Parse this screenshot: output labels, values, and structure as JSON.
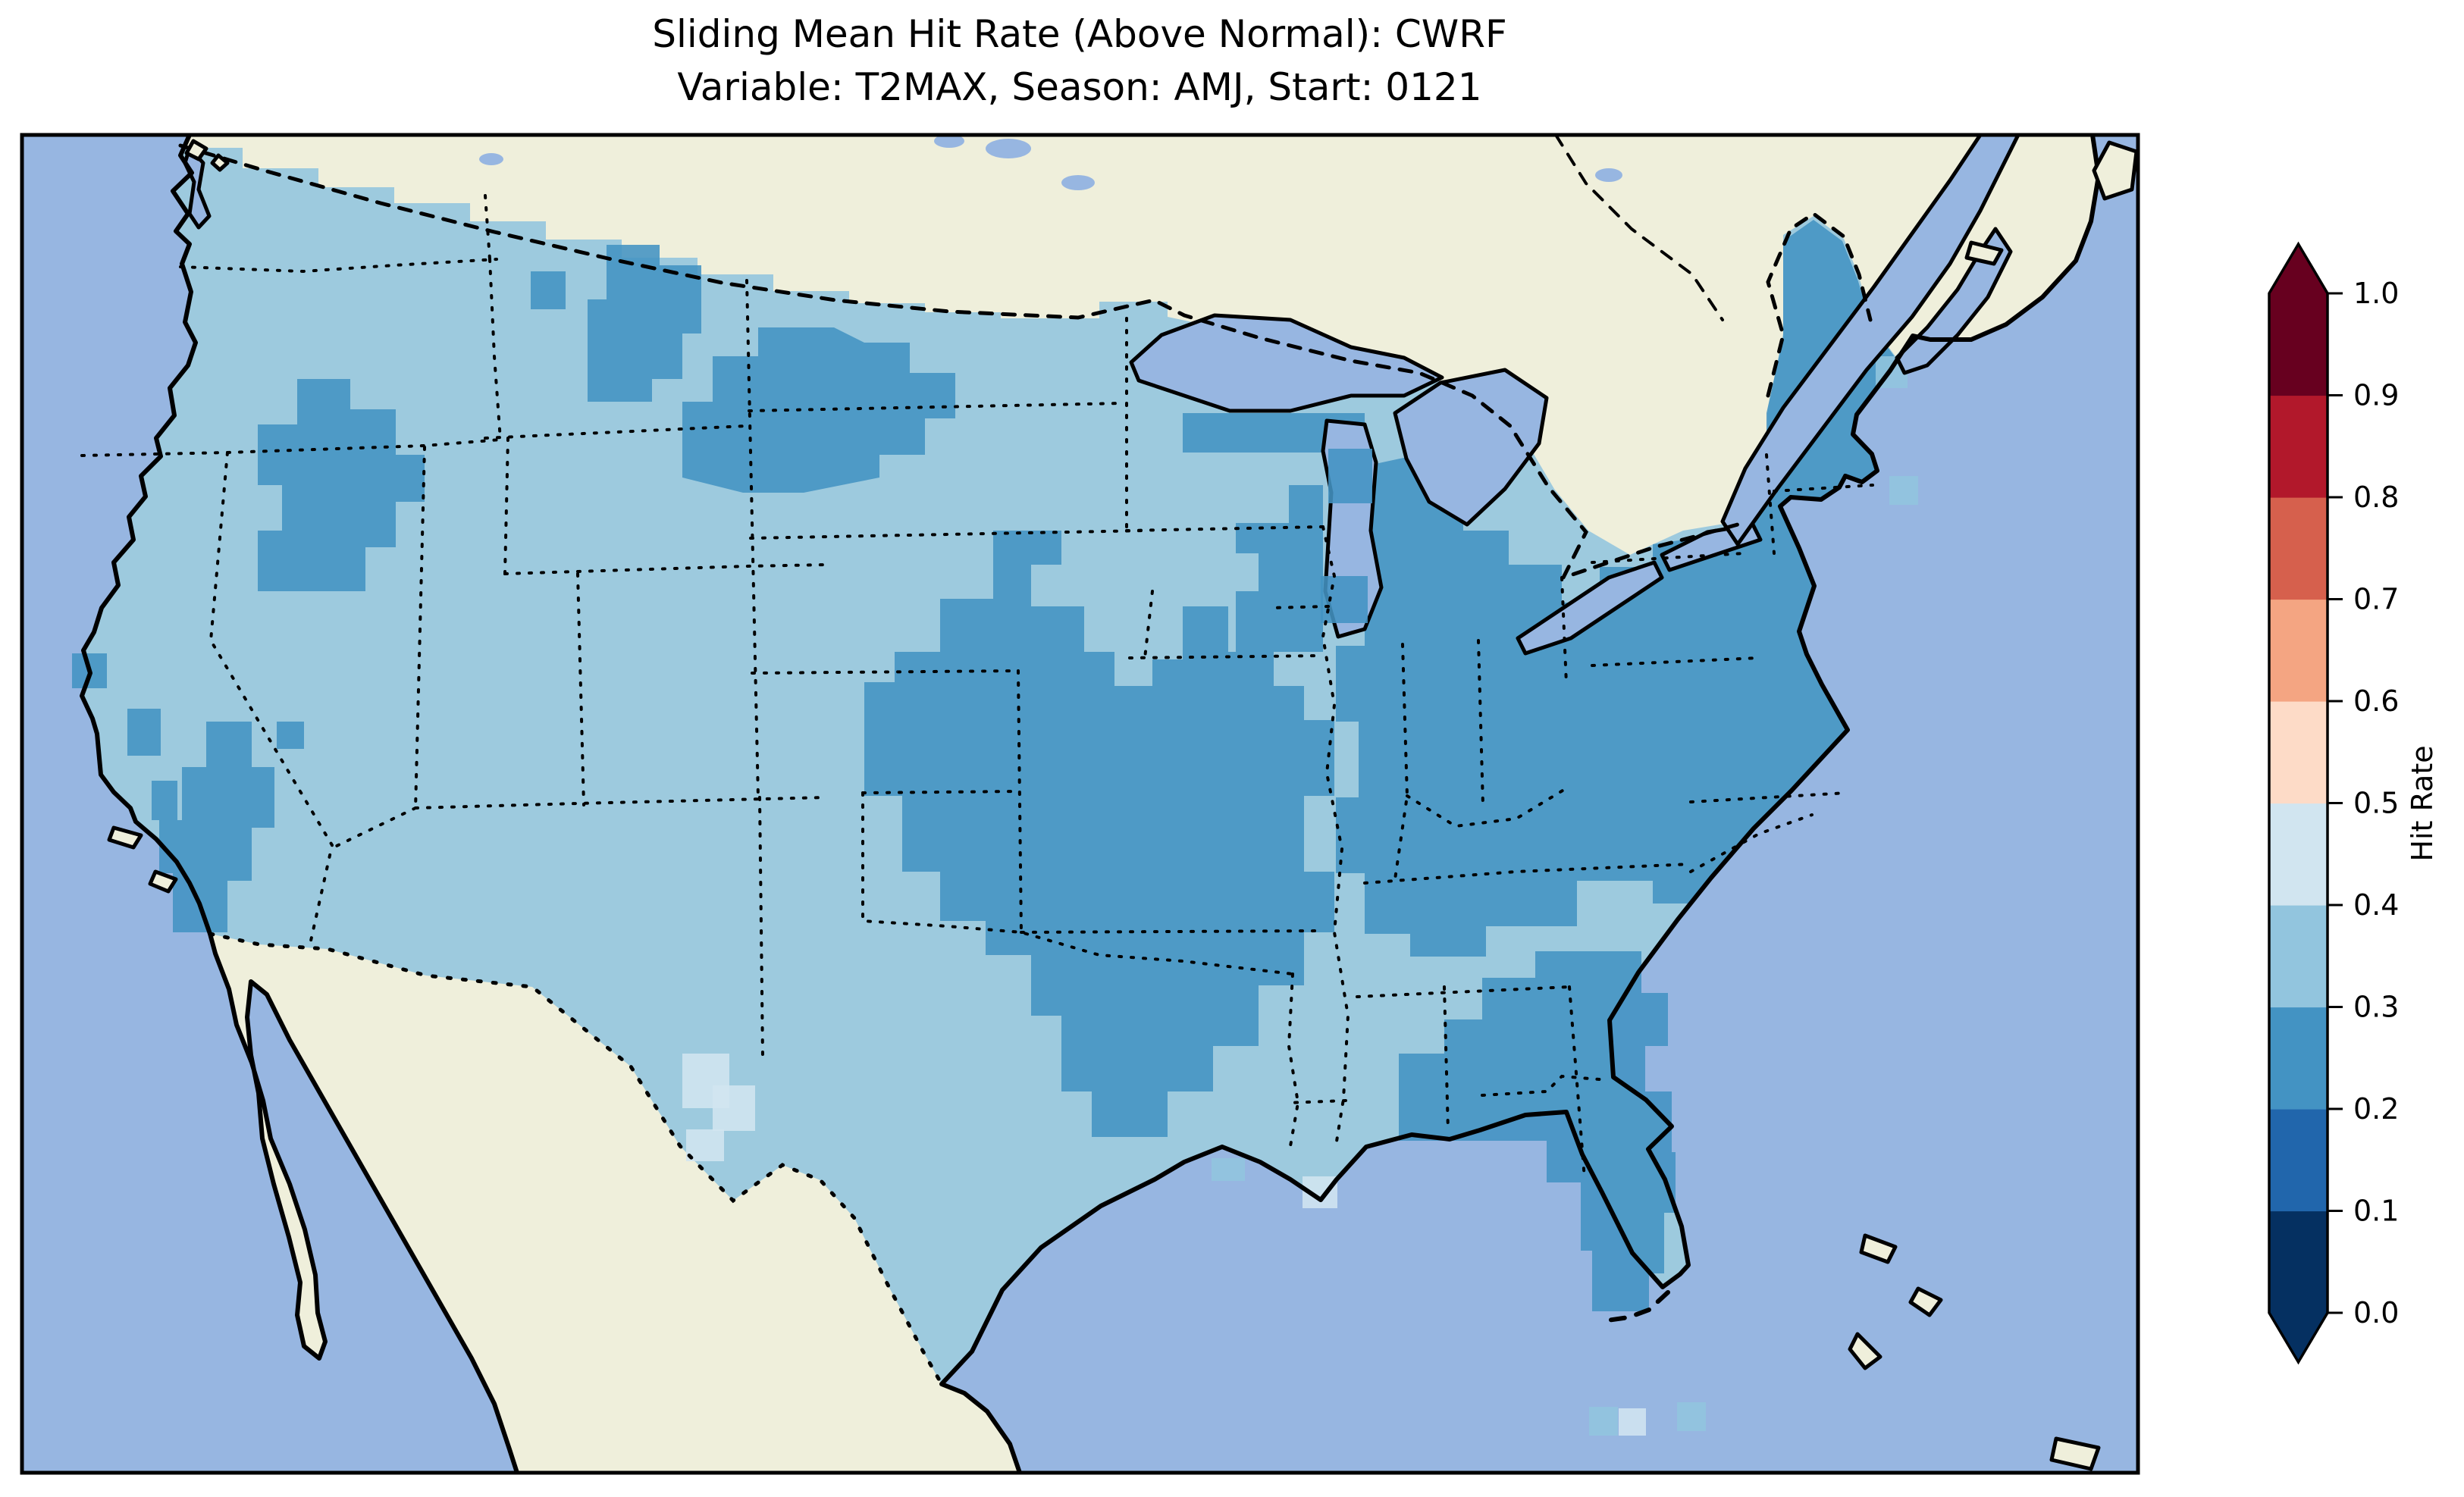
{
  "figure": {
    "title_line1": "Sliding Mean Hit Rate (Above Normal): CWRF",
    "title_line2": "Variable: T2MAX, Season: AMJ, Start: 0121"
  },
  "map": {
    "ocean_color": "#97b6e1",
    "land_color": "#efefdb",
    "lake_color": "#97b6e1",
    "coast_color": "#000000",
    "border_color": "#000000",
    "frame_color": "#000000",
    "background": "#ffffff"
  },
  "colorbar": {
    "label": "Hit Rate",
    "extend": "both",
    "ticks": [
      {
        "label": "1.0",
        "value": 1.0
      },
      {
        "label": "0.9",
        "value": 0.9
      },
      {
        "label": "0.8",
        "value": 0.8
      },
      {
        "label": "0.7",
        "value": 0.7
      },
      {
        "label": "0.6",
        "value": 0.6
      },
      {
        "label": "0.5",
        "value": 0.5
      },
      {
        "label": "0.4",
        "value": 0.4
      },
      {
        "label": "0.3",
        "value": 0.3
      },
      {
        "label": "0.2",
        "value": 0.2
      },
      {
        "label": "0.1",
        "value": 0.1
      },
      {
        "label": "0.0",
        "value": 0.0
      }
    ],
    "colors_low_to_high": [
      "#053061",
      "#2166ac",
      "#4393c3",
      "#92c5de",
      "#d1e5f0",
      "#fddbc7",
      "#f4a582",
      "#d6604d",
      "#b2182b",
      "#67001f"
    ]
  },
  "chart_data": {
    "type": "heatmap",
    "title": "Sliding Mean Hit Rate (Above Normal): CWRF",
    "subtitle": "Variable: T2MAX, Season: AMJ, Start: 0121",
    "model": "CWRF",
    "variable": "T2MAX",
    "season": "AMJ",
    "start": "0121",
    "metric": "Hit Rate",
    "category": "Above Normal",
    "region": "Contiguous United States (gridded forecast verification map)",
    "colorbar_label": "Hit Rate",
    "levels": [
      0.0,
      0.1,
      0.2,
      0.3,
      0.4,
      0.5,
      0.6,
      0.7,
      0.8,
      0.9,
      1.0
    ],
    "palette_low_to_high": [
      "#053061",
      "#2166ac",
      "#4393c3",
      "#92c5de",
      "#d1e5f0",
      "#fddbc7",
      "#f4a582",
      "#d6604d",
      "#b2182b",
      "#67001f"
    ],
    "value_range_observed_on_map": [
      0.2,
      0.5
    ],
    "observed_bins": {
      "0.2-0.3": [
        "Idaho panhandle / W Montana",
        "E Montana and W North Dakota",
        "NE Oregon - N Nevada",
        "N California coast patches",
        "S California Transverse Ranges",
        "one cell in central Nevada",
        "Central Plains: Kansas, Oklahoma, Missouri, N Texas, NW Arkansas, S Nebraska",
        "SE Wisconsin and Lower Michigan",
        "Illinois, Indiana, Ohio, Kentucky, West Virginia",
        "Pennsylvania, New York, New England incl. Maine",
        "Mid-Atlantic coast, E Virginia, E North Carolina",
        "Georgia, SE Alabama, N & central Florida peninsula",
        "Lake Superior south-shore cells"
      ],
      "0.3-0.4": [
        "Most of the remaining CONUS: Washington, Oregon, California interior, Great Basin, Rockies,",
        "most of Texas, Minnesota, Wisconsin (west), Iowa, Tennessee, Alabama, Mississippi,",
        "Louisiana, inland Carolinas, S Florida tip"
      ],
      "0.4-0.5": [
        "SW Texas (Big Bend area)",
        "Mississippi delta cells (SE Louisiana)",
        "cells near Florida Keys"
      ]
    },
    "legend_position": "right vertical colorbar with triangular over/under arrows"
  }
}
